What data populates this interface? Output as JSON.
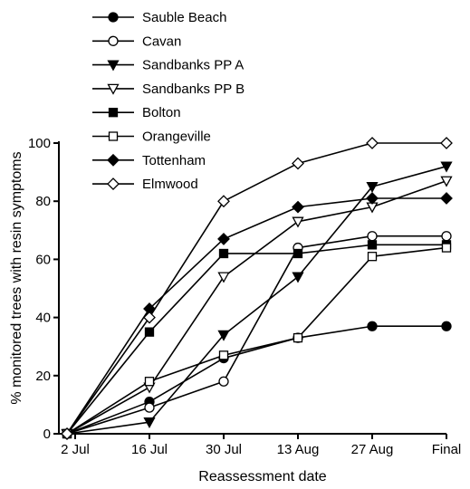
{
  "chart_data": {
    "type": "line",
    "title": "",
    "xlabel": "Reassessment date",
    "ylabel": "% monitored trees with resin symptoms",
    "categories": [
      "2 Jul",
      "16 Jul",
      "30 Jul",
      "13 Aug",
      "27 Aug",
      "Final"
    ],
    "ylim": [
      0,
      100
    ],
    "yticks": [
      0,
      20,
      40,
      60,
      80,
      100
    ],
    "grid": false,
    "legend_position": "top-left",
    "series": [
      {
        "name": "Sauble Beach",
        "marker": "circle",
        "fill": "filled",
        "values": [
          0,
          11,
          26,
          33,
          37,
          37
        ]
      },
      {
        "name": "Cavan",
        "marker": "circle",
        "fill": "open",
        "values": [
          0,
          9,
          18,
          64,
          68,
          68
        ]
      },
      {
        "name": "Sandbanks PP A",
        "marker": "triangle-down",
        "fill": "filled",
        "values": [
          0,
          4,
          34,
          54,
          85,
          92
        ]
      },
      {
        "name": "Sandbanks PP B",
        "marker": "triangle-down",
        "fill": "open",
        "values": [
          0,
          16,
          54,
          73,
          78,
          87
        ]
      },
      {
        "name": "Bolton",
        "marker": "square",
        "fill": "filled",
        "values": [
          0,
          35,
          62,
          62,
          65,
          65
        ]
      },
      {
        "name": "Orangeville",
        "marker": "square",
        "fill": "open",
        "values": [
          0,
          18,
          27,
          33,
          61,
          64
        ]
      },
      {
        "name": "Tottenham",
        "marker": "diamond",
        "fill": "filled",
        "values": [
          0,
          43,
          67,
          78,
          81,
          81
        ]
      },
      {
        "name": "Elmwood",
        "marker": "diamond",
        "fill": "open",
        "values": [
          0,
          40,
          80,
          93,
          100,
          100
        ]
      }
    ]
  }
}
